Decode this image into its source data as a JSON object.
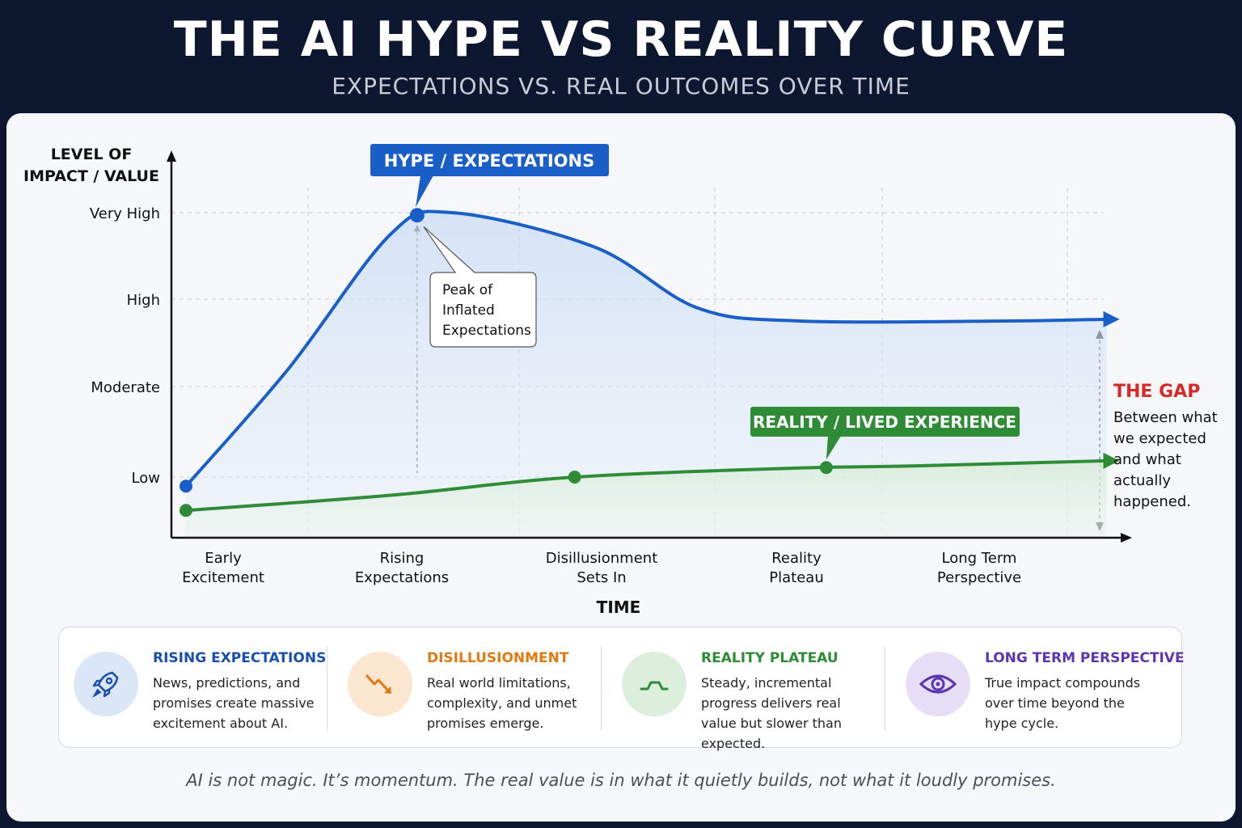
{
  "header": {
    "title": "THE AI HYPE VS REALITY CURVE",
    "subtitle": "EXPECTATIONS VS. REAL OUTCOMES OVER TIME"
  },
  "chart_data": {
    "type": "line",
    "ylabel": "LEVEL OF IMPACT / VALUE",
    "xlabel": "TIME",
    "y_levels": [
      "Low",
      "Moderate",
      "High",
      "Very High"
    ],
    "categories": [
      [
        "Early",
        "Excitement"
      ],
      [
        "Rising",
        "Expectations"
      ],
      [
        "Disillusionment",
        "Sets In"
      ],
      [
        "Reality",
        "Plateau"
      ],
      [
        "Long Term",
        "Perspective"
      ]
    ],
    "series": [
      {
        "name": "HYPE / EXPECTATIONS",
        "color": "#1a5fc8",
        "x": [
          0.0,
          0.5,
          1.0,
          1.3,
          2.0,
          2.5,
          3.0,
          4.0,
          4.5
        ],
        "y": [
          0.85,
          2.2,
          3.75,
          4.0,
          3.6,
          2.9,
          2.75,
          2.75,
          2.77
        ]
      },
      {
        "name": "REALITY / LIVED EXPERIENCE",
        "color": "#2e8b36",
        "x": [
          0.0,
          1.0,
          1.9,
          3.0,
          3.5,
          4.5
        ],
        "y": [
          0.45,
          0.7,
          1.0,
          1.1,
          1.12,
          1.18
        ]
      }
    ],
    "annotations": {
      "peak": [
        "Peak of",
        "Inflated",
        "Expectations"
      ],
      "gap_title": "THE GAP",
      "gap_text": [
        "Between what",
        "we expected",
        "and what",
        "actually",
        "happened."
      ]
    },
    "grid": true
  },
  "legend": [
    {
      "title": "RISING EXPECTATIONS",
      "text": "News, predictions, and promises create massive excitement about AI.",
      "icon": "rocket-icon",
      "color": "#1a4fb0",
      "bg": "#dbe6f7"
    },
    {
      "title": "DISILLUSIONMENT",
      "text": "Real world limitations, complexity, and unmet promises emerge.",
      "icon": "trend-down-icon",
      "color": "#e07a10",
      "bg": "#fbe7cf"
    },
    {
      "title": "REALITY PLATEAU",
      "text": "Steady, incremental progress delivers real value but slower than expected.",
      "icon": "plateau-icon",
      "color": "#2e8b36",
      "bg": "#dcefdc"
    },
    {
      "title": "LONG TERM PERSPECTIVE",
      "text": "True impact compounds over time beyond the hype cycle.",
      "icon": "eye-icon",
      "color": "#5b36b0",
      "bg": "#e6def6"
    }
  ],
  "footer": "AI is not magic. It’s momentum. The real value is in what it quietly builds, not what it loudly promises."
}
